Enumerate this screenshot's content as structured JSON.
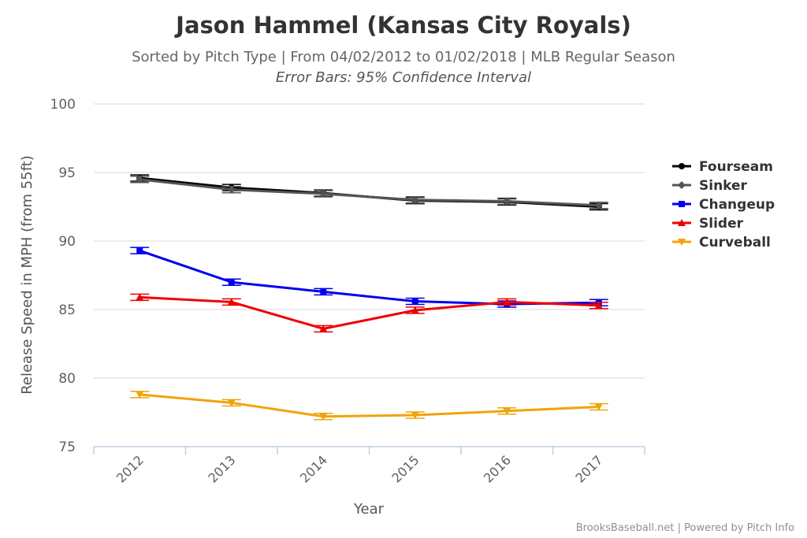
{
  "chart_data": {
    "type": "line",
    "title": "Jason Hammel (Kansas City Royals)",
    "subtitle": "Sorted by Pitch Type | From 04/02/2012 to 01/02/2018 | MLB Regular Season",
    "subtitle2": "Error Bars: 95% Confidence Interval",
    "xlabel": "Year",
    "ylabel": "Release Speed in MPH (from 55ft)",
    "categories": [
      "2012",
      "2013",
      "2014",
      "2015",
      "2016",
      "2017"
    ],
    "ylim": [
      75,
      100
    ],
    "yticks": [
      75,
      80,
      85,
      90,
      95,
      100
    ],
    "grid": true,
    "legend_position": "right",
    "series": [
      {
        "name": "Fourseam",
        "color": "#000000",
        "marker": "circle",
        "values": [
          94.6,
          93.9,
          93.5,
          92.95,
          92.85,
          92.5
        ]
      },
      {
        "name": "Sinker",
        "color": "#555555",
        "marker": "diamond",
        "values": [
          94.5,
          93.75,
          93.45,
          93.0,
          92.9,
          92.6
        ]
      },
      {
        "name": "Changeup",
        "color": "#0000ee",
        "marker": "square",
        "values": [
          89.3,
          87.0,
          86.3,
          85.6,
          85.4,
          85.5
        ]
      },
      {
        "name": "Slider",
        "color": "#ee0000",
        "marker": "triangle",
        "values": [
          85.9,
          85.55,
          83.6,
          84.95,
          85.55,
          85.3
        ]
      },
      {
        "name": "Curveball",
        "color": "#f0a30a",
        "marker": "triangle-down",
        "values": [
          78.8,
          78.2,
          77.2,
          77.3,
          77.6,
          77.9
        ]
      }
    ]
  },
  "credits": "BrooksBaseball.net | Powered by Pitch Info"
}
